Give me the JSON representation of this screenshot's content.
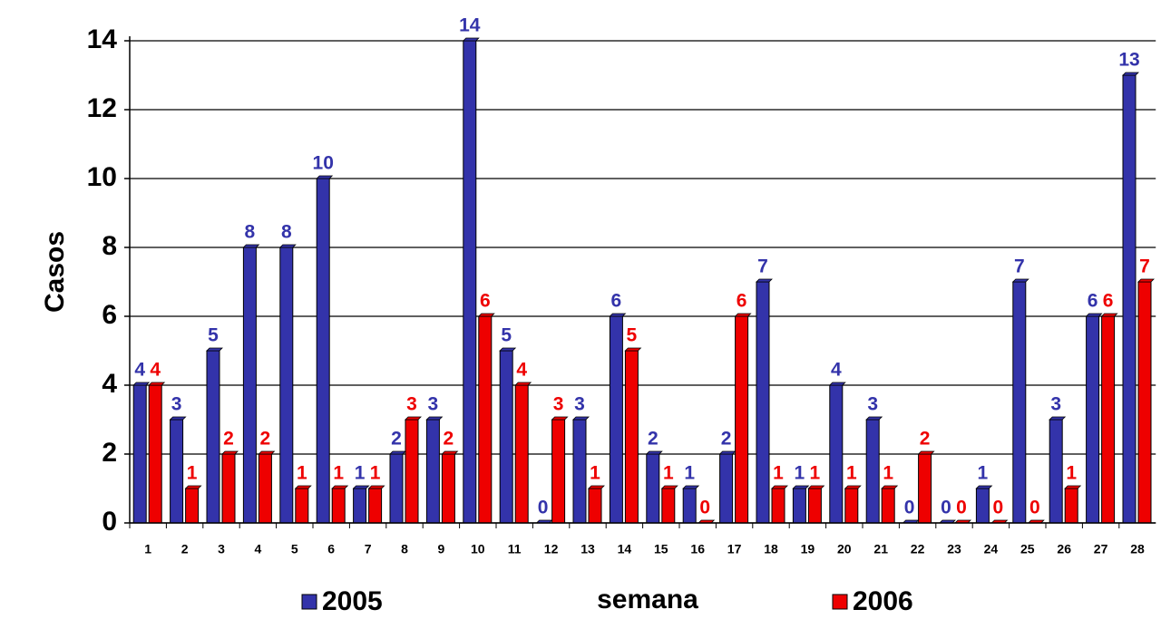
{
  "chart_data": {
    "type": "bar",
    "y_label": "Casos",
    "x_label": "semana",
    "categories": [
      "1",
      "2",
      "3",
      "4",
      "5",
      "6",
      "7",
      "8",
      "9",
      "10",
      "11",
      "12",
      "13",
      "14",
      "15",
      "16",
      "17",
      "18",
      "19",
      "20",
      "21",
      "22",
      "23",
      "24",
      "25",
      "26",
      "27",
      "28"
    ],
    "series": [
      {
        "name": "2005",
        "color": "#3333aa",
        "values": [
          4,
          3,
          5,
          8,
          8,
          10,
          1,
          2,
          3,
          14,
          5,
          0,
          3,
          6,
          2,
          1,
          2,
          7,
          1,
          4,
          3,
          0,
          0,
          1,
          7,
          3,
          6,
          13
        ]
      },
      {
        "name": "2006",
        "color": "#ee0000",
        "values": [
          4,
          1,
          2,
          2,
          1,
          1,
          1,
          3,
          2,
          6,
          4,
          3,
          1,
          5,
          1,
          0,
          6,
          1,
          1,
          1,
          1,
          2,
          0,
          0,
          0,
          1,
          6,
          7
        ]
      }
    ],
    "ylim": [
      0,
      14
    ],
    "yticks": [
      0,
      2,
      4,
      6,
      8,
      10,
      12,
      14
    ],
    "grid": true
  }
}
